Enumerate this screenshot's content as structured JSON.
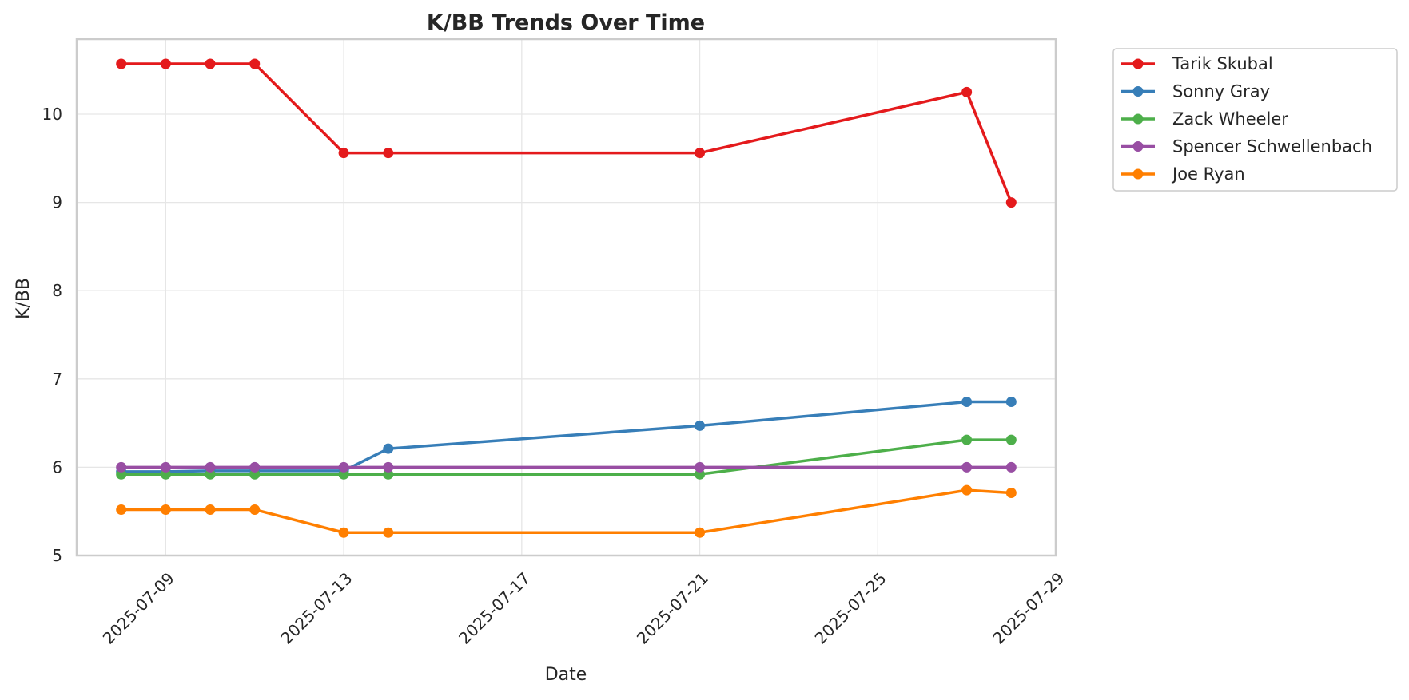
{
  "chart_data": {
    "type": "line",
    "title": "K/BB Trends Over Time",
    "xlabel": "Date",
    "ylabel": "K/BB",
    "xlim": [
      "2025-07-07",
      "2025-07-29"
    ],
    "ylim": [
      5,
      10.85
    ],
    "x_ticks": [
      "2025-07-09",
      "2025-07-13",
      "2025-07-17",
      "2025-07-21",
      "2025-07-25",
      "2025-07-29"
    ],
    "y_ticks": [
      5,
      6,
      7,
      8,
      9,
      10
    ],
    "grid": true,
    "legend_position": "outside top-right",
    "series": [
      {
        "name": "Tarik Skubal",
        "color": "#e41a1c",
        "points": [
          [
            "2025-07-08",
            10.57
          ],
          [
            "2025-07-09",
            10.57
          ],
          [
            "2025-07-10",
            10.57
          ],
          [
            "2025-07-11",
            10.57
          ],
          [
            "2025-07-13",
            9.56
          ],
          [
            "2025-07-14",
            9.56
          ],
          [
            "2025-07-21",
            9.56
          ],
          [
            "2025-07-27",
            10.25
          ],
          [
            "2025-07-28",
            9.0
          ]
        ]
      },
      {
        "name": "Sonny Gray",
        "color": "#377eb8",
        "points": [
          [
            "2025-07-08",
            5.95
          ],
          [
            "2025-07-09",
            5.95
          ],
          [
            "2025-07-10",
            5.96
          ],
          [
            "2025-07-11",
            5.96
          ],
          [
            "2025-07-13",
            5.96
          ],
          [
            "2025-07-14",
            6.21
          ],
          [
            "2025-07-21",
            6.47
          ],
          [
            "2025-07-27",
            6.74
          ],
          [
            "2025-07-28",
            6.74
          ]
        ]
      },
      {
        "name": "Zack Wheeler",
        "color": "#4daf4a",
        "points": [
          [
            "2025-07-08",
            5.92
          ],
          [
            "2025-07-09",
            5.92
          ],
          [
            "2025-07-10",
            5.92
          ],
          [
            "2025-07-11",
            5.92
          ],
          [
            "2025-07-13",
            5.92
          ],
          [
            "2025-07-14",
            5.92
          ],
          [
            "2025-07-21",
            5.92
          ],
          [
            "2025-07-27",
            6.31
          ],
          [
            "2025-07-28",
            6.31
          ]
        ]
      },
      {
        "name": "Spencer Schwellenbach",
        "color": "#984ea3",
        "points": [
          [
            "2025-07-08",
            6.0
          ],
          [
            "2025-07-09",
            6.0
          ],
          [
            "2025-07-10",
            6.0
          ],
          [
            "2025-07-11",
            6.0
          ],
          [
            "2025-07-13",
            6.0
          ],
          [
            "2025-07-14",
            6.0
          ],
          [
            "2025-07-21",
            6.0
          ],
          [
            "2025-07-27",
            6.0
          ],
          [
            "2025-07-28",
            6.0
          ]
        ]
      },
      {
        "name": "Joe Ryan",
        "color": "#ff7f00",
        "points": [
          [
            "2025-07-08",
            5.52
          ],
          [
            "2025-07-09",
            5.52
          ],
          [
            "2025-07-10",
            5.52
          ],
          [
            "2025-07-11",
            5.52
          ],
          [
            "2025-07-13",
            5.26
          ],
          [
            "2025-07-14",
            5.26
          ],
          [
            "2025-07-21",
            5.26
          ],
          [
            "2025-07-27",
            5.74
          ],
          [
            "2025-07-28",
            5.71
          ]
        ]
      }
    ]
  }
}
